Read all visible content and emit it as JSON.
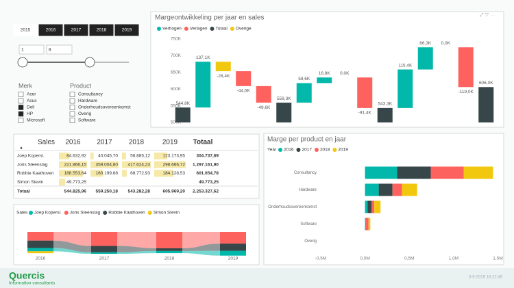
{
  "year_slicer": {
    "items": [
      "2015",
      "2016",
      "2017",
      "2018",
      "2019"
    ],
    "selected": [
      false,
      true,
      true,
      true,
      true
    ]
  },
  "range_slicer": {
    "min": "1",
    "max": "8"
  },
  "brand_filter": {
    "title": "Merk",
    "items": [
      {
        "label": "Acer",
        "checked": false
      },
      {
        "label": "Asus",
        "checked": false
      },
      {
        "label": "Dell",
        "checked": true
      },
      {
        "label": "HP",
        "checked": true
      },
      {
        "label": "Microsoft",
        "checked": false
      }
    ]
  },
  "product_filter": {
    "title": "Product",
    "items": [
      {
        "label": "Consultancy",
        "checked": false
      },
      {
        "label": "Hardware",
        "checked": false
      },
      {
        "label": "Onderhoudsovereenkomst",
        "checked": false
      },
      {
        "label": "Overig",
        "checked": false
      },
      {
        "label": "Software",
        "checked": false
      }
    ]
  },
  "table": {
    "columns": [
      "Sales",
      "2016",
      "2017",
      "2018",
      "2019",
      "Totaal"
    ],
    "rows": [
      [
        "Joep Kopersl.",
        "84.632,92",
        "40.045,70",
        "56.885,12",
        "123.173,95",
        "304.737,69"
      ],
      [
        "Joris Steenslag",
        "221.866,15",
        "359.004,80",
        "417.624,23",
        "298.666,72",
        "1.297.161,90"
      ],
      [
        "Robbie Kaathoven",
        "188.553,64",
        "160.199,68",
        "68.772,93",
        "184.128,53",
        "601.654,78"
      ],
      [
        "Simon Stevin",
        "49.773,25",
        null,
        null,
        null,
        "49.773,25"
      ]
    ],
    "totals": [
      "Totaal",
      "544.825,96",
      "559.250,18",
      "543.282,28",
      "605.969,20",
      "2.253.327,62"
    ]
  },
  "chart_data": [
    {
      "type": "waterfall",
      "title": "Margeontwikkeling per jaar en sales",
      "categories": [
        null,
        null,
        null,
        null,
        null,
        null,
        null,
        null,
        null,
        null,
        null,
        null,
        null,
        null,
        null,
        null
      ],
      "ylim": [
        500000,
        750000
      ],
      "yticks": [
        {
          "value": 500000,
          "label": "500K"
        },
        {
          "value": 550000,
          "label": "550K"
        },
        {
          "value": 600000,
          "label": "600K"
        },
        {
          "value": 650000,
          "label": "650K"
        },
        {
          "value": 700000,
          "label": "700K"
        },
        {
          "value": 750000,
          "label": "750K"
        }
      ],
      "grid": false,
      "series": [
        {
          "name": "Verhogen",
          "color": "#01b8aa",
          "values": [
            null,
            137100,
            null,
            null,
            null,
            null,
            58600,
            16800,
            0,
            null,
            null,
            115400,
            66300,
            0,
            null,
            null
          ],
          "value_labels": [
            null,
            "137,1K",
            null,
            null,
            null,
            null,
            "58,6K",
            "16,8K",
            "0,0K",
            null,
            null,
            "115,4K",
            "66,3K",
            "0,0K",
            null,
            null
          ]
        },
        {
          "name": "Verlagen",
          "color": "#fd625e",
          "values": [
            null,
            null,
            null,
            -44600,
            -49600,
            null,
            null,
            null,
            null,
            -91400,
            null,
            null,
            null,
            null,
            -119000,
            null
          ],
          "value_labels": [
            null,
            null,
            null,
            "-44,6K",
            "-49,6K",
            null,
            null,
            null,
            null,
            "-91,4K",
            null,
            null,
            null,
            null,
            "-119,0K",
            null
          ]
        },
        {
          "name": "Totaal",
          "color": "#374649",
          "total": true,
          "values": [
            544800,
            null,
            null,
            null,
            null,
            559300,
            null,
            null,
            null,
            null,
            543300,
            null,
            null,
            null,
            null,
            606000
          ],
          "value_labels": [
            "544,8K",
            null,
            null,
            null,
            null,
            "559,3K",
            null,
            null,
            null,
            null,
            "543,3K",
            null,
            null,
            null,
            null,
            "606,0K"
          ]
        },
        {
          "name": "Overige",
          "color": "#f2c80f",
          "values": [
            null,
            null,
            -28400,
            null,
            null,
            null,
            null,
            null,
            null,
            null,
            null,
            null,
            null,
            null,
            null,
            null
          ],
          "value_labels": [
            null,
            null,
            "-28,4K",
            null,
            null,
            null,
            null,
            null,
            null,
            null,
            null,
            null,
            null,
            null,
            null,
            null
          ]
        }
      ]
    },
    {
      "type": "bar",
      "orientation": "horizontal",
      "stacked": true,
      "title": "Marge per product en jaar",
      "legend_title": "Year",
      "categories": [
        "Consultancy",
        "Hardware",
        "Onderhoudsovereenkomst",
        "Software",
        "Overig"
      ],
      "xlim": [
        -600000,
        1550000
      ],
      "xticks": [
        {
          "value": -500000,
          "label": "-0,5M"
        },
        {
          "value": 0,
          "label": "0,0M"
        },
        {
          "value": 500000,
          "label": "0,5M"
        },
        {
          "value": 1000000,
          "label": "1,0M"
        },
        {
          "value": 1500000,
          "label": "1,5M"
        }
      ],
      "series": [
        {
          "name": "2016",
          "color": "#01b8aa",
          "values": [
            363000,
            155000,
            30000,
            10000,
            0
          ]
        },
        {
          "name": "2017",
          "color": "#374649",
          "values": [
            379000,
            155000,
            45000,
            0,
            0
          ]
        },
        {
          "name": "2018",
          "color": "#fd625e",
          "values": [
            371000,
            108000,
            30000,
            30000,
            0
          ]
        },
        {
          "name": "2019",
          "color": "#f2c80f",
          "values": [
            332000,
            170000,
            70000,
            20000,
            0
          ]
        }
      ]
    },
    {
      "type": "ribbon",
      "legend_title": "Sales",
      "categories": [
        "2016",
        "2017",
        "2018",
        "2019"
      ],
      "series": [
        {
          "name": "Joep Kopersl.",
          "color": "#01b8aa",
          "values": [
            84632.92,
            40045.7,
            56885.12,
            123173.95
          ]
        },
        {
          "name": "Joris Steenslag",
          "color": "#fd625e",
          "values": [
            221866.15,
            359004.8,
            417624.23,
            298666.72
          ]
        },
        {
          "name": "Robbie Kaathoven",
          "color": "#374649",
          "values": [
            188553.64,
            160199.68,
            68772.93,
            184128.53
          ]
        },
        {
          "name": "Simon Stevin",
          "color": "#f2c80f",
          "values": [
            49773.25,
            null,
            null,
            null
          ]
        }
      ]
    }
  ],
  "footer": {
    "logo": "Quercis",
    "tagline": "Information consultants",
    "timestamp": "3-9-2019 16:22:49"
  }
}
